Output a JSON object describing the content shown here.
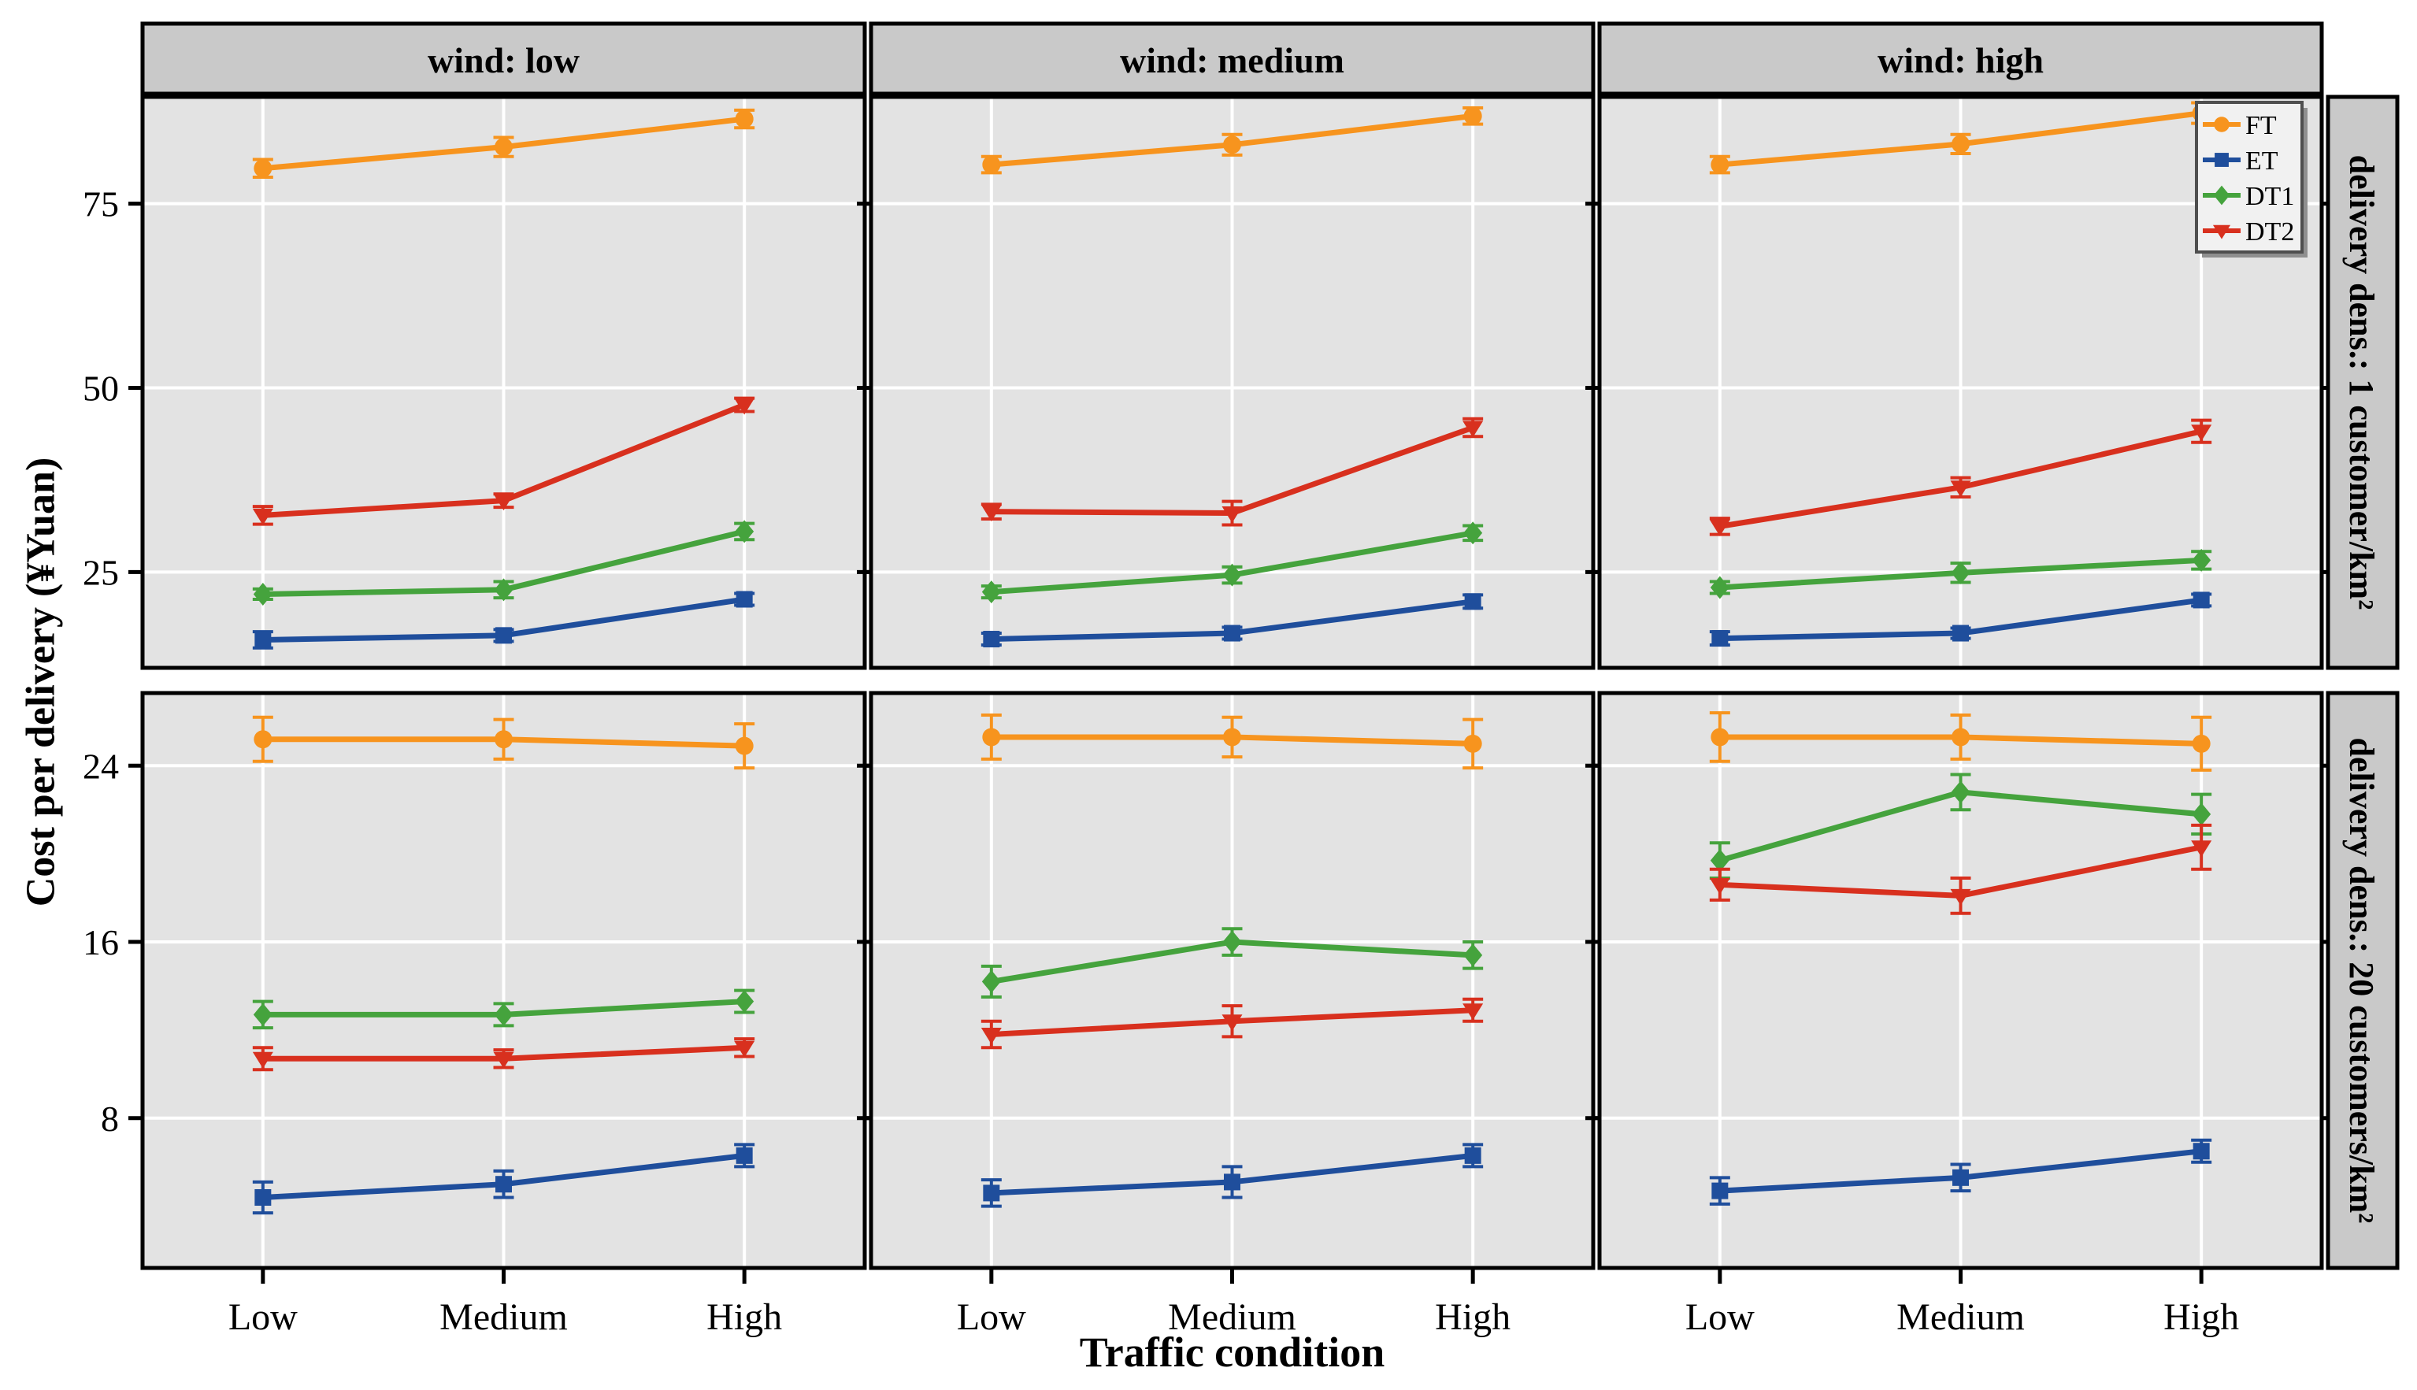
{
  "colors": {
    "panel_bg": "#E3E3E3",
    "strip_bg": "#C9C9C9",
    "gridline": "#FFFFFF",
    "border": "#000000",
    "legend_bg": "#F1F1F1",
    "legend_border": "#4F4F4F",
    "legend_shadow": "#8F8F8F",
    "ft": "#F7941E",
    "et": "#1F4E9C",
    "dt1": "#45A33D",
    "dt2": "#D8301E"
  },
  "chart_data": {
    "type": "line",
    "title": "",
    "xlabel": "Traffic condition",
    "ylabel": "Cost per delivery (¥Yuan)",
    "x_categories": [
      "Low",
      "Medium",
      "High"
    ],
    "col_facets": [
      "wind: low",
      "wind: medium",
      "wind: high"
    ],
    "row_facets": [
      {
        "label": "delivery dens.: 1 customer/km²",
        "yticks": [
          25,
          50,
          75
        ],
        "ylim": [
          12,
          89.5
        ]
      },
      {
        "label": "delivery dens.: 20 customers/km²",
        "yticks": [
          8,
          16,
          24
        ],
        "ylim": [
          1.2,
          27.3
        ]
      }
    ],
    "series": [
      {
        "name": "FT",
        "color": "#F7941E",
        "marker": "circle"
      },
      {
        "name": "ET",
        "color": "#1F4E9C",
        "marker": "square"
      },
      {
        "name": "DT1",
        "color": "#45A33D",
        "marker": "diamond"
      },
      {
        "name": "DT2",
        "color": "#D8301E",
        "marker": "triangle-down"
      }
    ],
    "legend": {
      "entries": [
        "FT",
        "ET",
        "DT1",
        "DT2"
      ],
      "position": "top-right"
    },
    "grid": true,
    "panels": [
      {
        "row": 0,
        "col": 0,
        "values": {
          "FT": [
            79.8,
            82.7,
            86.5
          ],
          "ET": [
            15.8,
            16.4,
            21.3
          ],
          "DT1": [
            22.0,
            22.6,
            30.5
          ],
          "DT2": [
            32.7,
            34.7,
            47.7
          ]
        },
        "errors": {
          "FT": [
            1.2,
            1.3,
            1.2
          ],
          "ET": [
            1.1,
            0.8,
            0.8
          ],
          "DT1": [
            0.7,
            1.1,
            1.1
          ],
          "DT2": [
            1.2,
            0.9,
            0.9
          ]
        }
      },
      {
        "row": 0,
        "col": 1,
        "values": {
          "FT": [
            80.3,
            83.0,
            86.9
          ],
          "ET": [
            15.9,
            16.7,
            21.0
          ],
          "DT1": [
            22.3,
            24.6,
            30.3
          ],
          "DT2": [
            33.2,
            33.0,
            44.6
          ]
        },
        "errors": {
          "FT": [
            1.1,
            1.4,
            1.1
          ],
          "ET": [
            0.8,
            0.8,
            0.9
          ],
          "DT1": [
            0.8,
            1.1,
            1.0
          ],
          "DT2": [
            1.0,
            1.6,
            1.2
          ]
        }
      },
      {
        "row": 0,
        "col": 2,
        "values": {
          "FT": [
            80.3,
            83.1,
            87.3
          ],
          "ET": [
            16.0,
            16.7,
            21.2
          ],
          "DT1": [
            22.9,
            24.9,
            26.6
          ],
          "DT2": [
            31.2,
            36.5,
            44.1
          ]
        },
        "errors": {
          "FT": [
            1.1,
            1.3,
            1.4
          ],
          "ET": [
            0.9,
            0.7,
            0.8
          ],
          "DT1": [
            0.8,
            1.3,
            1.2
          ],
          "DT2": [
            1.1,
            1.3,
            1.5
          ]
        }
      },
      {
        "row": 1,
        "col": 0,
        "values": {
          "FT": [
            25.2,
            25.2,
            24.9
          ],
          "ET": [
            4.4,
            5.0,
            6.3
          ],
          "DT1": [
            12.7,
            12.7,
            13.3
          ],
          "DT2": [
            10.7,
            10.7,
            11.2
          ]
        },
        "errors": {
          "FT": [
            1.0,
            0.9,
            1.0
          ],
          "ET": [
            0.7,
            0.6,
            0.5
          ],
          "DT1": [
            0.6,
            0.5,
            0.5
          ],
          "DT2": [
            0.5,
            0.4,
            0.4
          ]
        }
      },
      {
        "row": 1,
        "col": 1,
        "values": {
          "FT": [
            25.3,
            25.3,
            25.0
          ],
          "ET": [
            4.6,
            5.1,
            6.3
          ],
          "DT1": [
            14.2,
            16.0,
            15.4
          ],
          "DT2": [
            11.8,
            12.4,
            12.9
          ]
        },
        "errors": {
          "FT": [
            1.0,
            0.9,
            1.1
          ],
          "ET": [
            0.6,
            0.7,
            0.5
          ],
          "DT1": [
            0.7,
            0.6,
            0.6
          ],
          "DT2": [
            0.6,
            0.7,
            0.5
          ]
        }
      },
      {
        "row": 1,
        "col": 2,
        "values": {
          "FT": [
            25.3,
            25.3,
            25.0
          ],
          "ET": [
            4.7,
            5.3,
            6.5
          ],
          "DT1": [
            19.7,
            22.8,
            21.8
          ],
          "DT2": [
            18.6,
            18.1,
            20.3
          ]
        },
        "errors": {
          "FT": [
            1.1,
            1.0,
            1.2
          ],
          "ET": [
            0.6,
            0.6,
            0.5
          ],
          "DT1": [
            0.8,
            0.8,
            0.9
          ],
          "DT2": [
            0.7,
            0.8,
            1.0
          ]
        }
      }
    ]
  }
}
